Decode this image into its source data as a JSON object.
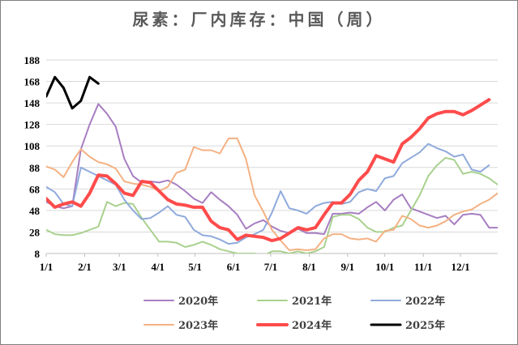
{
  "chart_data": {
    "type": "line",
    "title": "尿素：厂内库存：中国（周）",
    "xlabel": "",
    "ylabel": "",
    "ylim": [
      8,
      188
    ],
    "yticks": [
      8,
      28,
      48,
      68,
      88,
      108,
      128,
      148,
      168,
      188
    ],
    "xlim": [
      0,
      52
    ],
    "xticks": [
      {
        "label": "1/1",
        "x": 0
      },
      {
        "label": "2/1",
        "x": 4.43
      },
      {
        "label": "3/1",
        "x": 8.43
      },
      {
        "label": "4/1",
        "x": 12.86
      },
      {
        "label": "5/1",
        "x": 17.14
      },
      {
        "label": "6/1",
        "x": 21.57
      },
      {
        "label": "7/1",
        "x": 25.86
      },
      {
        "label": "8/1",
        "x": 30.29
      },
      {
        "label": "9/1",
        "x": 34.71
      },
      {
        "label": "10/1",
        "x": 39
      },
      {
        "label": "11/1",
        "x": 43.43
      },
      {
        "label": "12/1",
        "x": 47.71
      }
    ],
    "grid": "horizontal",
    "legend_position": "bottom",
    "series": [
      {
        "name": "2020年",
        "color": "#a77ec2",
        "width": 2,
        "points": [
          [
            0,
            56
          ],
          [
            1,
            52
          ],
          [
            2,
            50
          ],
          [
            3,
            52
          ],
          [
            4,
            105
          ],
          [
            5,
            128
          ],
          [
            6,
            147
          ],
          [
            7,
            138
          ],
          [
            8,
            126
          ],
          [
            9,
            96
          ],
          [
            10,
            80
          ],
          [
            11,
            74
          ],
          [
            12,
            75
          ],
          [
            13,
            74
          ],
          [
            14,
            76
          ],
          [
            15,
            72
          ],
          [
            16,
            66
          ],
          [
            17,
            59
          ],
          [
            18,
            55
          ],
          [
            19,
            65
          ],
          [
            20,
            58
          ],
          [
            21,
            52
          ],
          [
            22,
            44
          ],
          [
            23,
            31
          ],
          [
            24,
            36
          ],
          [
            25,
            39
          ],
          [
            26,
            33
          ],
          [
            27,
            29
          ],
          [
            28,
            27
          ],
          [
            29,
            31
          ],
          [
            30,
            27
          ],
          [
            31,
            27
          ],
          [
            32,
            26
          ],
          [
            33,
            45
          ],
          [
            34,
            45
          ],
          [
            35,
            46
          ],
          [
            36,
            45
          ],
          [
            37,
            51
          ],
          [
            38,
            56
          ],
          [
            39,
            48
          ],
          [
            40,
            58
          ],
          [
            41,
            63
          ],
          [
            42,
            50
          ],
          [
            43,
            47
          ],
          [
            44,
            44
          ],
          [
            45,
            41
          ],
          [
            46,
            43
          ],
          [
            47,
            35
          ],
          [
            48,
            44
          ],
          [
            49,
            45
          ],
          [
            50,
            44
          ],
          [
            51,
            32
          ],
          [
            52,
            32
          ]
        ]
      },
      {
        "name": "2021年",
        "color": "#a9d18e",
        "width": 2,
        "points": [
          [
            0,
            30
          ],
          [
            1,
            26
          ],
          [
            2,
            25
          ],
          [
            3,
            25
          ],
          [
            4,
            27
          ],
          [
            5,
            30
          ],
          [
            6,
            33
          ],
          [
            7,
            56
          ],
          [
            8,
            52
          ],
          [
            9,
            55
          ],
          [
            10,
            54
          ],
          [
            11,
            41
          ],
          [
            12,
            30
          ],
          [
            13,
            19
          ],
          [
            14,
            19
          ],
          [
            15,
            18
          ],
          [
            16,
            14
          ],
          [
            17,
            16
          ],
          [
            18,
            19
          ],
          [
            19,
            16
          ],
          [
            20,
            12
          ],
          [
            21,
            10
          ],
          [
            22,
            8
          ],
          [
            23,
            8
          ],
          [
            24,
            8
          ],
          [
            25,
            6
          ],
          [
            26,
            10
          ],
          [
            27,
            10
          ],
          [
            28,
            8
          ],
          [
            29,
            10
          ],
          [
            30,
            8
          ],
          [
            31,
            10
          ],
          [
            32,
            14
          ],
          [
            33,
            42
          ],
          [
            34,
            44
          ],
          [
            35,
            44
          ],
          [
            36,
            40
          ],
          [
            37,
            32
          ],
          [
            38,
            28
          ],
          [
            39,
            28
          ],
          [
            40,
            32
          ],
          [
            41,
            34
          ],
          [
            42,
            48
          ],
          [
            43,
            62
          ],
          [
            44,
            80
          ],
          [
            45,
            90
          ],
          [
            46,
            97
          ],
          [
            47,
            95
          ],
          [
            48,
            82
          ],
          [
            49,
            84
          ],
          [
            50,
            82
          ],
          [
            51,
            78
          ],
          [
            52,
            72
          ]
        ]
      },
      {
        "name": "2022年",
        "color": "#8faadc",
        "width": 2,
        "points": [
          [
            0,
            70
          ],
          [
            1,
            65
          ],
          [
            2,
            54
          ],
          [
            3,
            52
          ],
          [
            4,
            88
          ],
          [
            5,
            84
          ],
          [
            6,
            80
          ],
          [
            7,
            76
          ],
          [
            8,
            72
          ],
          [
            9,
            58
          ],
          [
            10,
            48
          ],
          [
            11,
            40
          ],
          [
            12,
            41
          ],
          [
            13,
            46
          ],
          [
            14,
            52
          ],
          [
            15,
            44
          ],
          [
            16,
            42
          ],
          [
            17,
            30
          ],
          [
            18,
            25
          ],
          [
            19,
            24
          ],
          [
            20,
            21
          ],
          [
            21,
            17
          ],
          [
            22,
            18
          ],
          [
            23,
            23
          ],
          [
            24,
            26
          ],
          [
            25,
            30
          ],
          [
            26,
            46
          ],
          [
            27,
            66
          ],
          [
            28,
            50
          ],
          [
            29,
            48
          ],
          [
            30,
            45
          ],
          [
            31,
            52
          ],
          [
            32,
            55
          ],
          [
            33,
            56
          ],
          [
            34,
            54
          ],
          [
            35,
            56
          ],
          [
            36,
            65
          ],
          [
            37,
            68
          ],
          [
            38,
            66
          ],
          [
            39,
            78
          ],
          [
            40,
            80
          ],
          [
            41,
            92
          ],
          [
            42,
            97
          ],
          [
            43,
            102
          ],
          [
            44,
            110
          ],
          [
            45,
            106
          ],
          [
            46,
            103
          ],
          [
            47,
            98
          ],
          [
            48,
            100
          ],
          [
            49,
            86
          ],
          [
            50,
            84
          ],
          [
            51,
            90
          ]
        ]
      },
      {
        "name": "2023年",
        "color": "#f4b183",
        "width": 2,
        "points": [
          [
            0,
            89
          ],
          [
            1,
            86
          ],
          [
            2,
            79
          ],
          [
            3,
            93
          ],
          [
            4,
            105
          ],
          [
            5,
            98
          ],
          [
            6,
            93
          ],
          [
            7,
            91
          ],
          [
            8,
            87
          ],
          [
            9,
            75
          ],
          [
            10,
            73
          ],
          [
            11,
            72
          ],
          [
            12,
            70
          ],
          [
            13,
            66
          ],
          [
            14,
            70
          ],
          [
            15,
            83
          ],
          [
            16,
            86
          ],
          [
            17,
            107
          ],
          [
            18,
            104
          ],
          [
            19,
            104
          ],
          [
            20,
            101
          ],
          [
            21,
            115
          ],
          [
            22,
            115
          ],
          [
            23,
            96
          ],
          [
            24,
            62
          ],
          [
            25,
            47
          ],
          [
            26,
            30
          ],
          [
            27,
            20
          ],
          [
            28,
            11
          ],
          [
            29,
            12
          ],
          [
            30,
            11
          ],
          [
            31,
            12
          ],
          [
            32,
            22
          ],
          [
            33,
            26
          ],
          [
            34,
            26
          ],
          [
            35,
            22
          ],
          [
            36,
            21
          ],
          [
            37,
            22
          ],
          [
            38,
            19
          ],
          [
            39,
            29
          ],
          [
            40,
            30
          ],
          [
            41,
            43
          ],
          [
            42,
            40
          ],
          [
            43,
            34
          ],
          [
            44,
            32
          ],
          [
            45,
            34
          ],
          [
            46,
            38
          ],
          [
            47,
            44
          ],
          [
            48,
            47
          ],
          [
            49,
            49
          ],
          [
            50,
            54
          ],
          [
            51,
            58
          ],
          [
            52,
            64
          ]
        ]
      },
      {
        "name": "2024年",
        "color": "#ff4b4b",
        "width": 4,
        "points": [
          [
            0,
            59
          ],
          [
            1,
            51
          ],
          [
            2,
            54
          ],
          [
            3,
            56
          ],
          [
            4,
            52
          ],
          [
            5,
            64
          ],
          [
            6,
            81
          ],
          [
            7,
            80
          ],
          [
            8,
            73
          ],
          [
            9,
            64
          ],
          [
            10,
            62
          ],
          [
            11,
            75
          ],
          [
            12,
            74
          ],
          [
            13,
            66
          ],
          [
            14,
            58
          ],
          [
            15,
            54
          ],
          [
            16,
            53
          ],
          [
            17,
            51
          ],
          [
            18,
            51
          ],
          [
            19,
            38
          ],
          [
            20,
            32
          ],
          [
            21,
            30
          ],
          [
            22,
            21
          ],
          [
            23,
            25
          ],
          [
            24,
            24
          ],
          [
            25,
            23
          ],
          [
            26,
            20
          ],
          [
            27,
            22
          ],
          [
            28,
            27
          ],
          [
            29,
            32
          ],
          [
            30,
            30
          ],
          [
            31,
            32
          ],
          [
            32,
            44
          ],
          [
            33,
            55
          ],
          [
            34,
            55
          ],
          [
            35,
            63
          ],
          [
            36,
            76
          ],
          [
            37,
            84
          ],
          [
            38,
            99
          ],
          [
            39,
            96
          ],
          [
            40,
            93
          ],
          [
            41,
            110
          ],
          [
            42,
            116
          ],
          [
            43,
            124
          ],
          [
            44,
            134
          ],
          [
            45,
            138
          ],
          [
            46,
            140
          ],
          [
            47,
            140
          ],
          [
            48,
            137
          ],
          [
            49,
            141
          ],
          [
            50,
            146
          ],
          [
            51,
            151
          ]
        ]
      },
      {
        "name": "2025年",
        "color": "#000000",
        "width": 3,
        "points": [
          [
            0,
            154
          ],
          [
            1,
            172
          ],
          [
            2,
            162
          ],
          [
            3,
            143
          ],
          [
            4,
            150
          ],
          [
            5,
            172
          ],
          [
            6,
            166
          ]
        ]
      }
    ]
  }
}
